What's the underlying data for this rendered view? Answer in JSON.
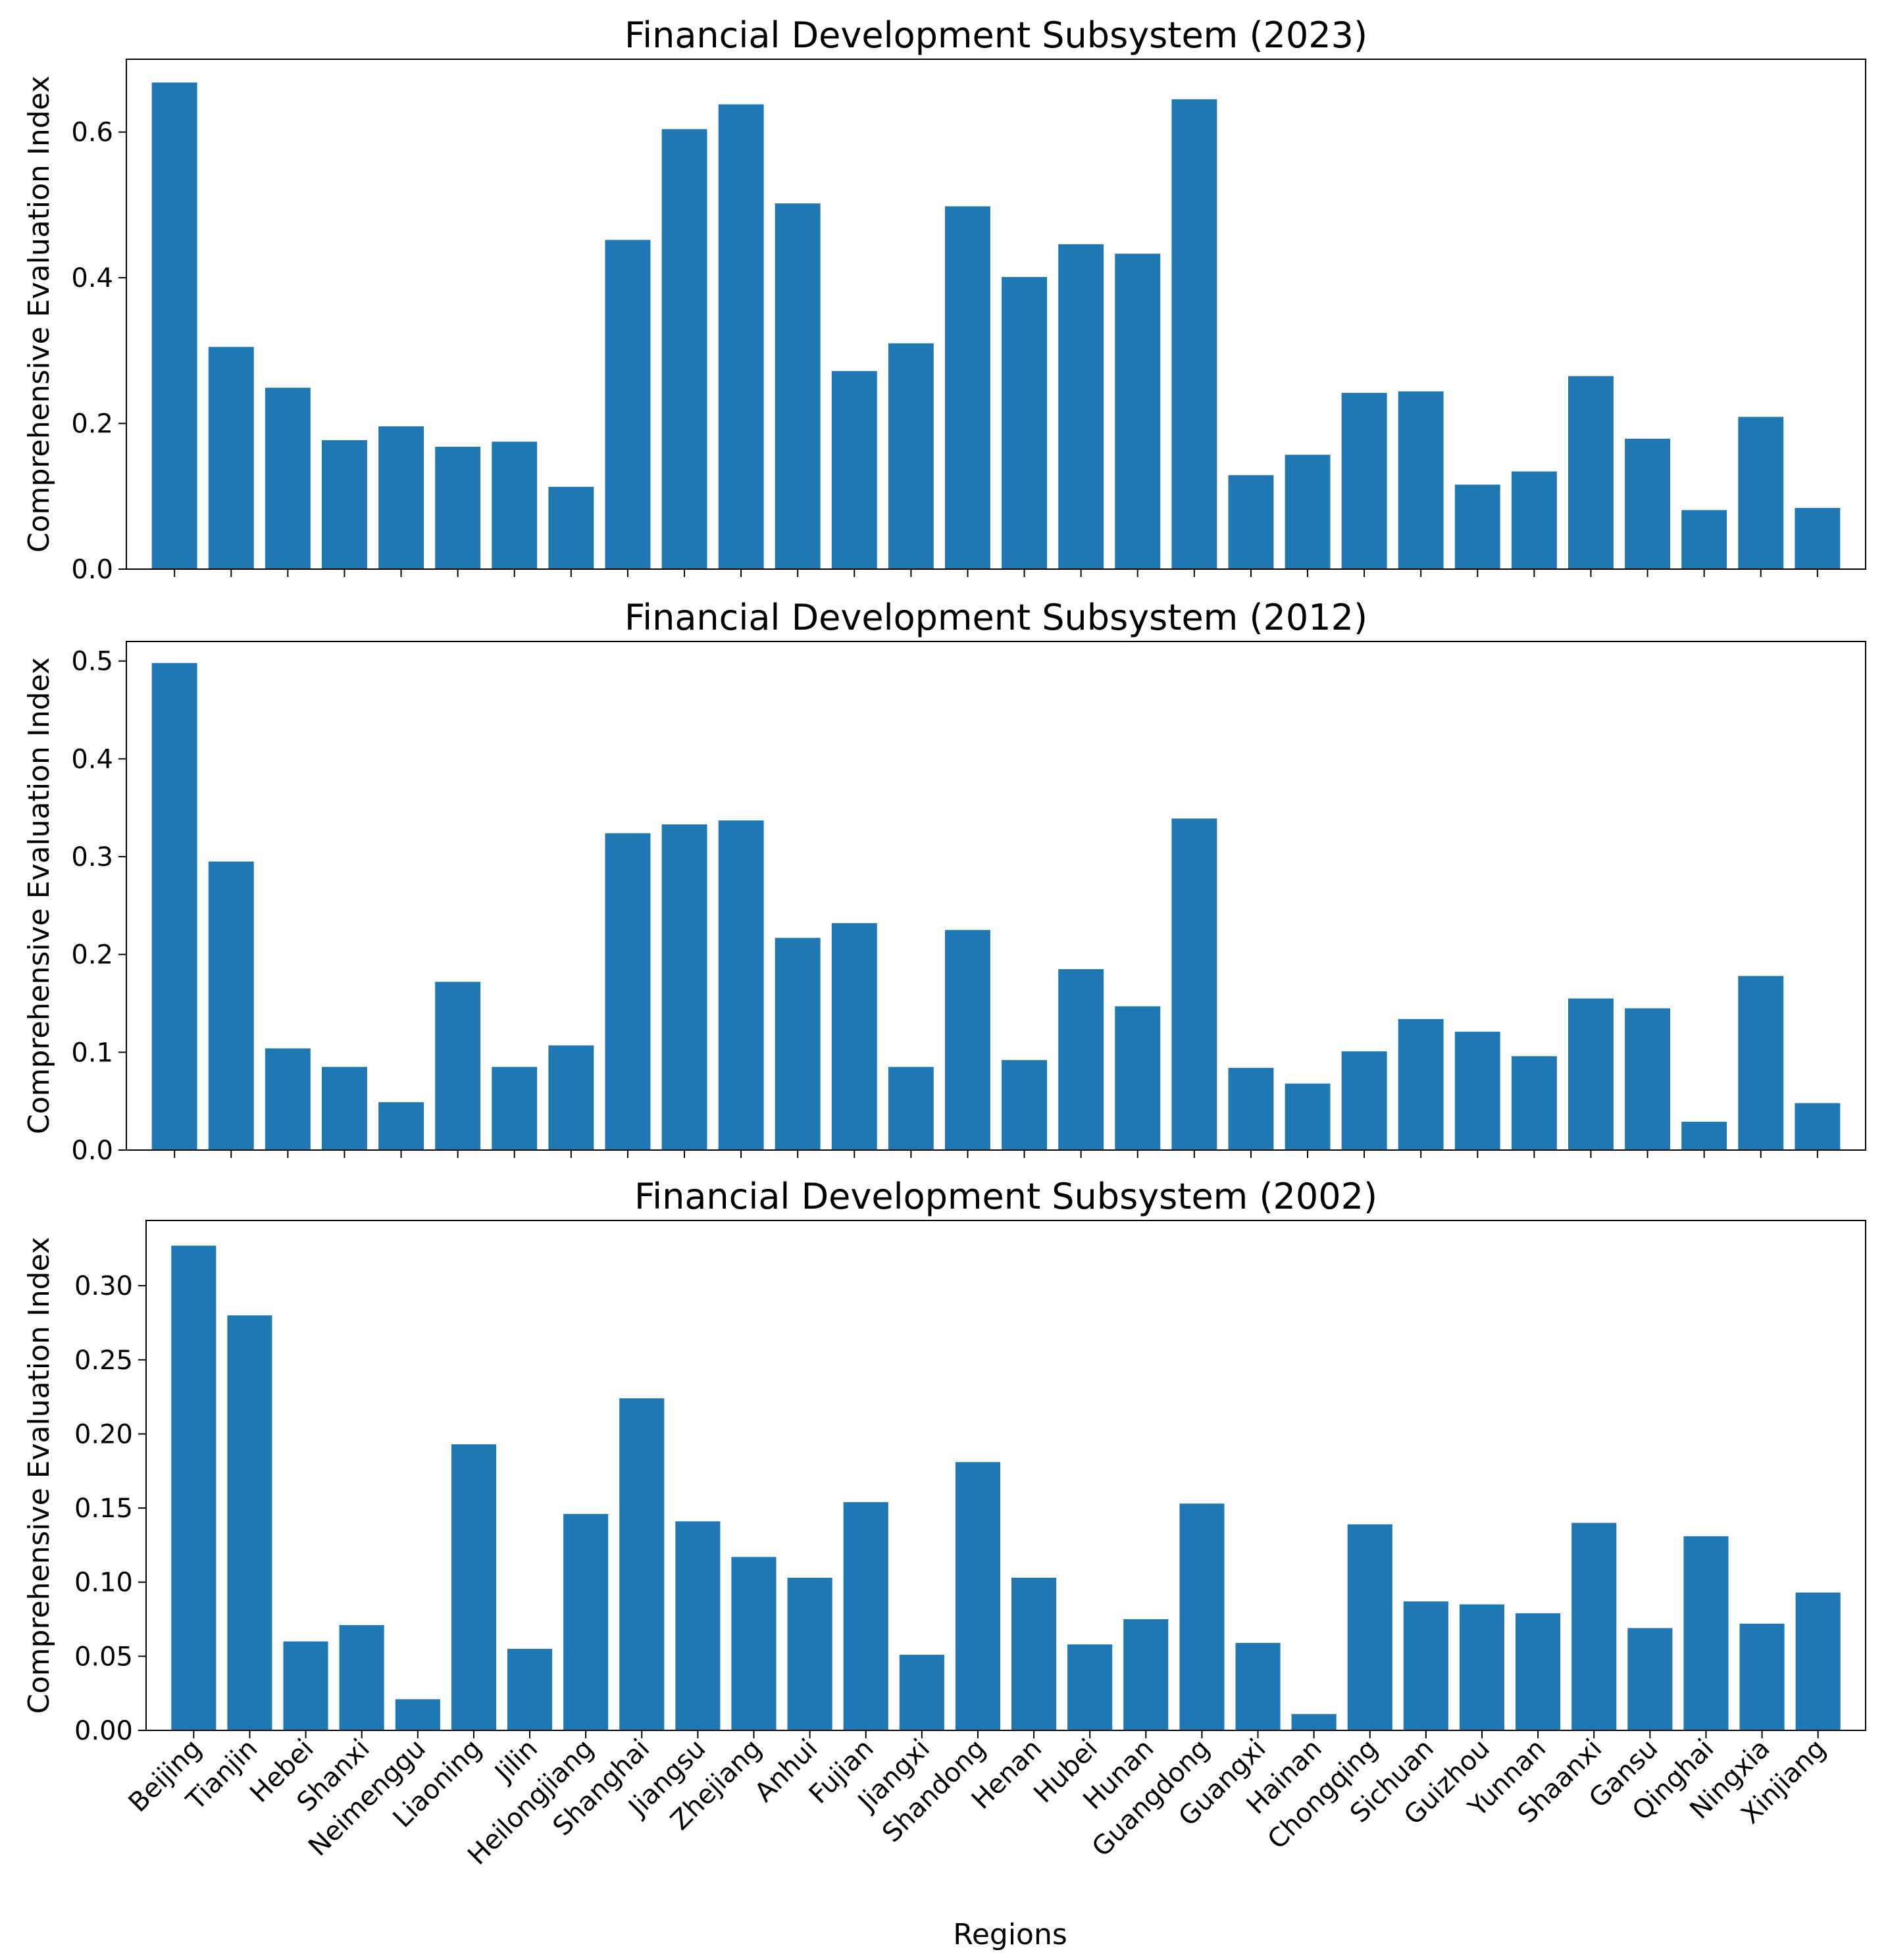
{
  "figure": {
    "xlabel": "Regions",
    "bar_color": "#1f77b4"
  },
  "chart_data": [
    {
      "type": "bar",
      "title": "Financial Development Subsystem (2023)",
      "xlabel": "",
      "ylabel": "Comprehensive Evaluation Index",
      "ylim": [
        0,
        0.7
      ],
      "yticks": [
        0.0,
        0.2,
        0.4,
        0.6
      ],
      "ytick_labels": [
        "0.0",
        "0.2",
        "0.4",
        "0.6"
      ],
      "categories": [
        "Beijing",
        "Tianjin",
        "Hebei",
        "Shanxi",
        "Neimenggu",
        "Liaoning",
        "Jilin",
        "Heilongjiang",
        "Shanghai",
        "Jiangsu",
        "Zhejiang",
        "Anhui",
        "Fujian",
        "Jiangxi",
        "Shandong",
        "Henan",
        "Hubei",
        "Hunan",
        "Guangdong",
        "Guangxi",
        "Hainan",
        "Chongqing",
        "Sichuan",
        "Guizhou",
        "Yunnan",
        "Shaanxi",
        "Gansu",
        "Qinghai",
        "Ningxia",
        "Xinjiang"
      ],
      "values": [
        0.668,
        0.305,
        0.249,
        0.177,
        0.196,
        0.168,
        0.175,
        0.113,
        0.452,
        0.604,
        0.638,
        0.502,
        0.272,
        0.31,
        0.498,
        0.401,
        0.446,
        0.433,
        0.645,
        0.129,
        0.157,
        0.242,
        0.244,
        0.116,
        0.134,
        0.265,
        0.179,
        0.081,
        0.209,
        0.084
      ]
    },
    {
      "type": "bar",
      "title": "Financial Development Subsystem (2012)",
      "xlabel": "",
      "ylabel": "Comprehensive Evaluation Index",
      "ylim": [
        0,
        0.52
      ],
      "yticks": [
        0.0,
        0.1,
        0.2,
        0.3,
        0.4,
        0.5
      ],
      "ytick_labels": [
        "0.0",
        "0.1",
        "0.2",
        "0.3",
        "0.4",
        "0.5"
      ],
      "categories": [
        "Beijing",
        "Tianjin",
        "Hebei",
        "Shanxi",
        "Neimenggu",
        "Liaoning",
        "Jilin",
        "Heilongjiang",
        "Shanghai",
        "Jiangsu",
        "Zhejiang",
        "Anhui",
        "Fujian",
        "Jiangxi",
        "Shandong",
        "Henan",
        "Hubei",
        "Hunan",
        "Guangdong",
        "Guangxi",
        "Hainan",
        "Chongqing",
        "Sichuan",
        "Guizhou",
        "Yunnan",
        "Shaanxi",
        "Gansu",
        "Qinghai",
        "Ningxia",
        "Xinjiang"
      ],
      "values": [
        0.498,
        0.295,
        0.104,
        0.085,
        0.049,
        0.172,
        0.085,
        0.107,
        0.324,
        0.333,
        0.337,
        0.217,
        0.232,
        0.085,
        0.225,
        0.092,
        0.185,
        0.147,
        0.339,
        0.084,
        0.068,
        0.101,
        0.134,
        0.121,
        0.096,
        0.155,
        0.145,
        0.029,
        0.178,
        0.048
      ]
    },
    {
      "type": "bar",
      "title": "Financial Development Subsystem (2002)",
      "xlabel": "Regions",
      "ylabel": "Comprehensive Evaluation Index",
      "ylim": [
        0,
        0.344
      ],
      "yticks": [
        0.0,
        0.05,
        0.1,
        0.15,
        0.2,
        0.25,
        0.3
      ],
      "ytick_labels": [
        "0.00",
        "0.05",
        "0.10",
        "0.15",
        "0.20",
        "0.25",
        "0.30"
      ],
      "categories": [
        "Beijing",
        "Tianjin",
        "Hebei",
        "Shanxi",
        "Neimenggu",
        "Liaoning",
        "Jilin",
        "Heilongjiang",
        "Shanghai",
        "Jiangsu",
        "Zhejiang",
        "Anhui",
        "Fujian",
        "Jiangxi",
        "Shandong",
        "Henan",
        "Hubei",
        "Hunan",
        "Guangdong",
        "Guangxi",
        "Hainan",
        "Chongqing",
        "Sichuan",
        "Guizhou",
        "Yunnan",
        "Shaanxi",
        "Gansu",
        "Qinghai",
        "Ningxia",
        "Xinjiang"
      ],
      "values": [
        0.327,
        0.28,
        0.06,
        0.071,
        0.021,
        0.193,
        0.055,
        0.146,
        0.224,
        0.141,
        0.117,
        0.103,
        0.154,
        0.051,
        0.181,
        0.103,
        0.058,
        0.075,
        0.153,
        0.059,
        0.011,
        0.139,
        0.087,
        0.085,
        0.079,
        0.14,
        0.069,
        0.131,
        0.072,
        0.093
      ]
    }
  ]
}
